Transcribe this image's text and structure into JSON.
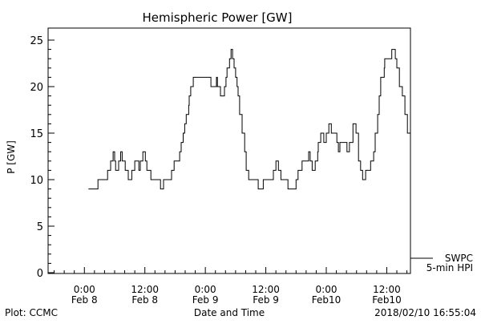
{
  "chart_data": {
    "type": "line",
    "title": "Hemispheric Power [GW]",
    "xlabel": "Date and Time",
    "ylabel": "P [GW]",
    "x_units": "hours since 2018-02-08 00:00",
    "xlim": [
      -7.2,
      64.7
    ],
    "ylim": [
      0,
      25
    ],
    "y_ticks": [
      0,
      5,
      10,
      15,
      20,
      25
    ],
    "x_ticks": [
      {
        "hour": 0,
        "line1": "0:00",
        "line2": "Feb 8"
      },
      {
        "hour": 12,
        "line1": "12:00",
        "line2": "Feb 8"
      },
      {
        "hour": 24,
        "line1": "0:00",
        "line2": "Feb 9"
      },
      {
        "hour": 36,
        "line1": "12:00",
        "line2": "Feb 9"
      },
      {
        "hour": 48,
        "line1": "0:00",
        "line2": "Feb10"
      },
      {
        "hour": 60,
        "line1": "12:00",
        "line2": "Feb10"
      }
    ],
    "grid": false,
    "legend": {
      "placement": "bottom-right-outside",
      "entries": [
        "SWPC",
        "5-min HPI"
      ]
    },
    "series": [
      {
        "name": "SWPC 5-min HPI",
        "points": [
          [
            0.8,
            9
          ],
          [
            2.7,
            10
          ],
          [
            4.6,
            11
          ],
          [
            5.2,
            12
          ],
          [
            5.7,
            13
          ],
          [
            6.0,
            12
          ],
          [
            6.2,
            11
          ],
          [
            6.8,
            12
          ],
          [
            7.2,
            13
          ],
          [
            7.5,
            12
          ],
          [
            8.1,
            11
          ],
          [
            8.7,
            10
          ],
          [
            9.4,
            11
          ],
          [
            10.0,
            12
          ],
          [
            10.8,
            11
          ],
          [
            11.1,
            12
          ],
          [
            11.6,
            13
          ],
          [
            12.1,
            12
          ],
          [
            12.4,
            11
          ],
          [
            13.2,
            10
          ],
          [
            15.1,
            9
          ],
          [
            15.7,
            10
          ],
          [
            17.3,
            11
          ],
          [
            17.8,
            12
          ],
          [
            18.9,
            13
          ],
          [
            19.2,
            14
          ],
          [
            19.6,
            15
          ],
          [
            19.9,
            16
          ],
          [
            20.2,
            17
          ],
          [
            20.7,
            18
          ],
          [
            20.8,
            19
          ],
          [
            21.1,
            20
          ],
          [
            21.6,
            21
          ],
          [
            25.1,
            20
          ],
          [
            26.2,
            21
          ],
          [
            26.4,
            20
          ],
          [
            27.0,
            19
          ],
          [
            27.8,
            20
          ],
          [
            28.1,
            21
          ],
          [
            28.3,
            22
          ],
          [
            28.8,
            23
          ],
          [
            29.1,
            24
          ],
          [
            29.4,
            23
          ],
          [
            29.7,
            22
          ],
          [
            30.0,
            21
          ],
          [
            30.3,
            20
          ],
          [
            30.5,
            19
          ],
          [
            30.8,
            17
          ],
          [
            31.3,
            15
          ],
          [
            31.8,
            13
          ],
          [
            32.1,
            11
          ],
          [
            32.6,
            10
          ],
          [
            34.5,
            9
          ],
          [
            35.5,
            10
          ],
          [
            37.5,
            11
          ],
          [
            38.0,
            12
          ],
          [
            38.5,
            11
          ],
          [
            39.0,
            10
          ],
          [
            40.4,
            9
          ],
          [
            42.0,
            10
          ],
          [
            42.4,
            11
          ],
          [
            43.2,
            12
          ],
          [
            44.5,
            13
          ],
          [
            44.8,
            12
          ],
          [
            45.2,
            11
          ],
          [
            45.8,
            12
          ],
          [
            46.3,
            13
          ],
          [
            46.4,
            14
          ],
          [
            46.9,
            15
          ],
          [
            47.5,
            14
          ],
          [
            48.0,
            15
          ],
          [
            48.5,
            16
          ],
          [
            49.0,
            15
          ],
          [
            50.1,
            14
          ],
          [
            50.4,
            13
          ],
          [
            50.7,
            14
          ],
          [
            52.1,
            13
          ],
          [
            52.6,
            14
          ],
          [
            53.3,
            16
          ],
          [
            53.9,
            15
          ],
          [
            54.4,
            12
          ],
          [
            54.8,
            11
          ],
          [
            55.2,
            10
          ],
          [
            55.8,
            11
          ],
          [
            56.8,
            12
          ],
          [
            57.4,
            13
          ],
          [
            57.7,
            15
          ],
          [
            58.2,
            17
          ],
          [
            58.5,
            19
          ],
          [
            58.8,
            21
          ],
          [
            59.5,
            22
          ],
          [
            59.6,
            23
          ],
          [
            61.0,
            24
          ],
          [
            61.7,
            23
          ],
          [
            62.0,
            22
          ],
          [
            62.5,
            20
          ],
          [
            63.1,
            19
          ],
          [
            63.6,
            17
          ],
          [
            64.1,
            15
          ],
          [
            64.7,
            13
          ]
        ]
      }
    ]
  },
  "footer": {
    "left": "Plot: CCMC",
    "timestamp": "2018/02/10 16:55:04"
  }
}
